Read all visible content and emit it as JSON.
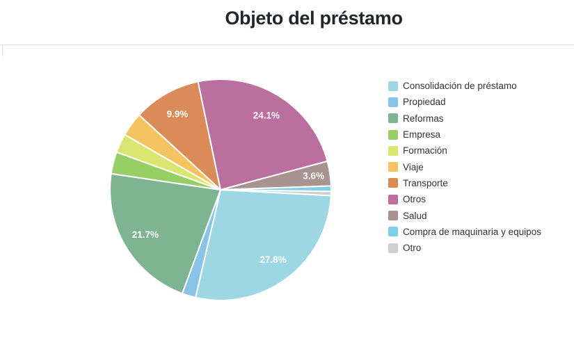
{
  "header": {
    "title": "Objeto del préstamo"
  },
  "colors": {
    "divider": "#dcdcdc",
    "value_label_text": "#ffffff",
    "legend_text": "#333333",
    "title_text": "#21262b"
  },
  "chart_data": {
    "type": "pie",
    "title": "Objeto del préstamo",
    "legend_position": "right",
    "start_angle_deg": 93,
    "unit": "%",
    "series": [
      {
        "label": "Consolidación de préstamo",
        "value": 27.8,
        "color": "#9DD7E4",
        "value_label": "27.8%"
      },
      {
        "label": "Propiedad",
        "value": 2.0,
        "color": "#8AC3E8",
        "value_label": null
      },
      {
        "label": "Reformas",
        "value": 21.7,
        "color": "#7FB492",
        "value_label": "21.7%"
      },
      {
        "label": "Empresa",
        "value": 3.2,
        "color": "#96CF66",
        "value_label": null
      },
      {
        "label": "Formación",
        "value": 2.8,
        "color": "#D9E671",
        "value_label": null
      },
      {
        "label": "Viaje",
        "value": 3.5,
        "color": "#F5C35F",
        "value_label": null
      },
      {
        "label": "Transporte",
        "value": 9.9,
        "color": "#DA8B58",
        "value_label": "9.9%"
      },
      {
        "label": "Otros",
        "value": 24.1,
        "color": "#BB6F9E",
        "value_label": "24.1%"
      },
      {
        "label": "Salud",
        "value": 3.6,
        "color": "#A99390",
        "value_label": "3.6%"
      },
      {
        "label": "Compra de maquinaria y equipos",
        "value": 0.8,
        "color": "#7FCFEA",
        "value_label": null
      },
      {
        "label": "Otro",
        "value": 0.6,
        "color": "#CFCFCF",
        "value_label": null
      }
    ]
  }
}
